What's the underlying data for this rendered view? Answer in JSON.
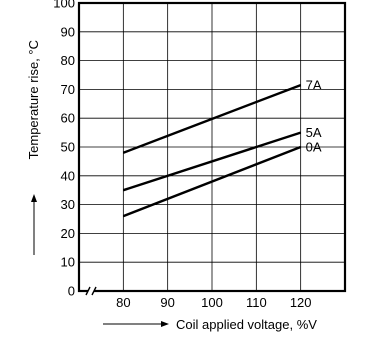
{
  "chart_data": {
    "type": "line",
    "title": "",
    "xlabel": "Coil applied voltage, %V",
    "ylabel": "Temperature rise, °C",
    "xlim": [
      70,
      130
    ],
    "ylim": [
      0,
      100
    ],
    "x_ticks": [
      80,
      90,
      100,
      110,
      120
    ],
    "y_ticks": [
      0,
      10,
      20,
      30,
      40,
      50,
      60,
      70,
      80,
      90,
      100
    ],
    "x_axis_break": true,
    "grid": true,
    "legend": "none (series labeled at line ends)",
    "colors": {
      "line": "#000000",
      "grid": "#000000",
      "background": "#ffffff"
    },
    "series": [
      {
        "name": "7A",
        "x": [
          80,
          120
        ],
        "y": [
          48,
          71.5
        ]
      },
      {
        "name": "5A",
        "x": [
          80,
          120
        ],
        "y": [
          35,
          55
        ]
      },
      {
        "name": "0A",
        "x": [
          80,
          120
        ],
        "y": [
          26,
          50
        ]
      }
    ]
  }
}
